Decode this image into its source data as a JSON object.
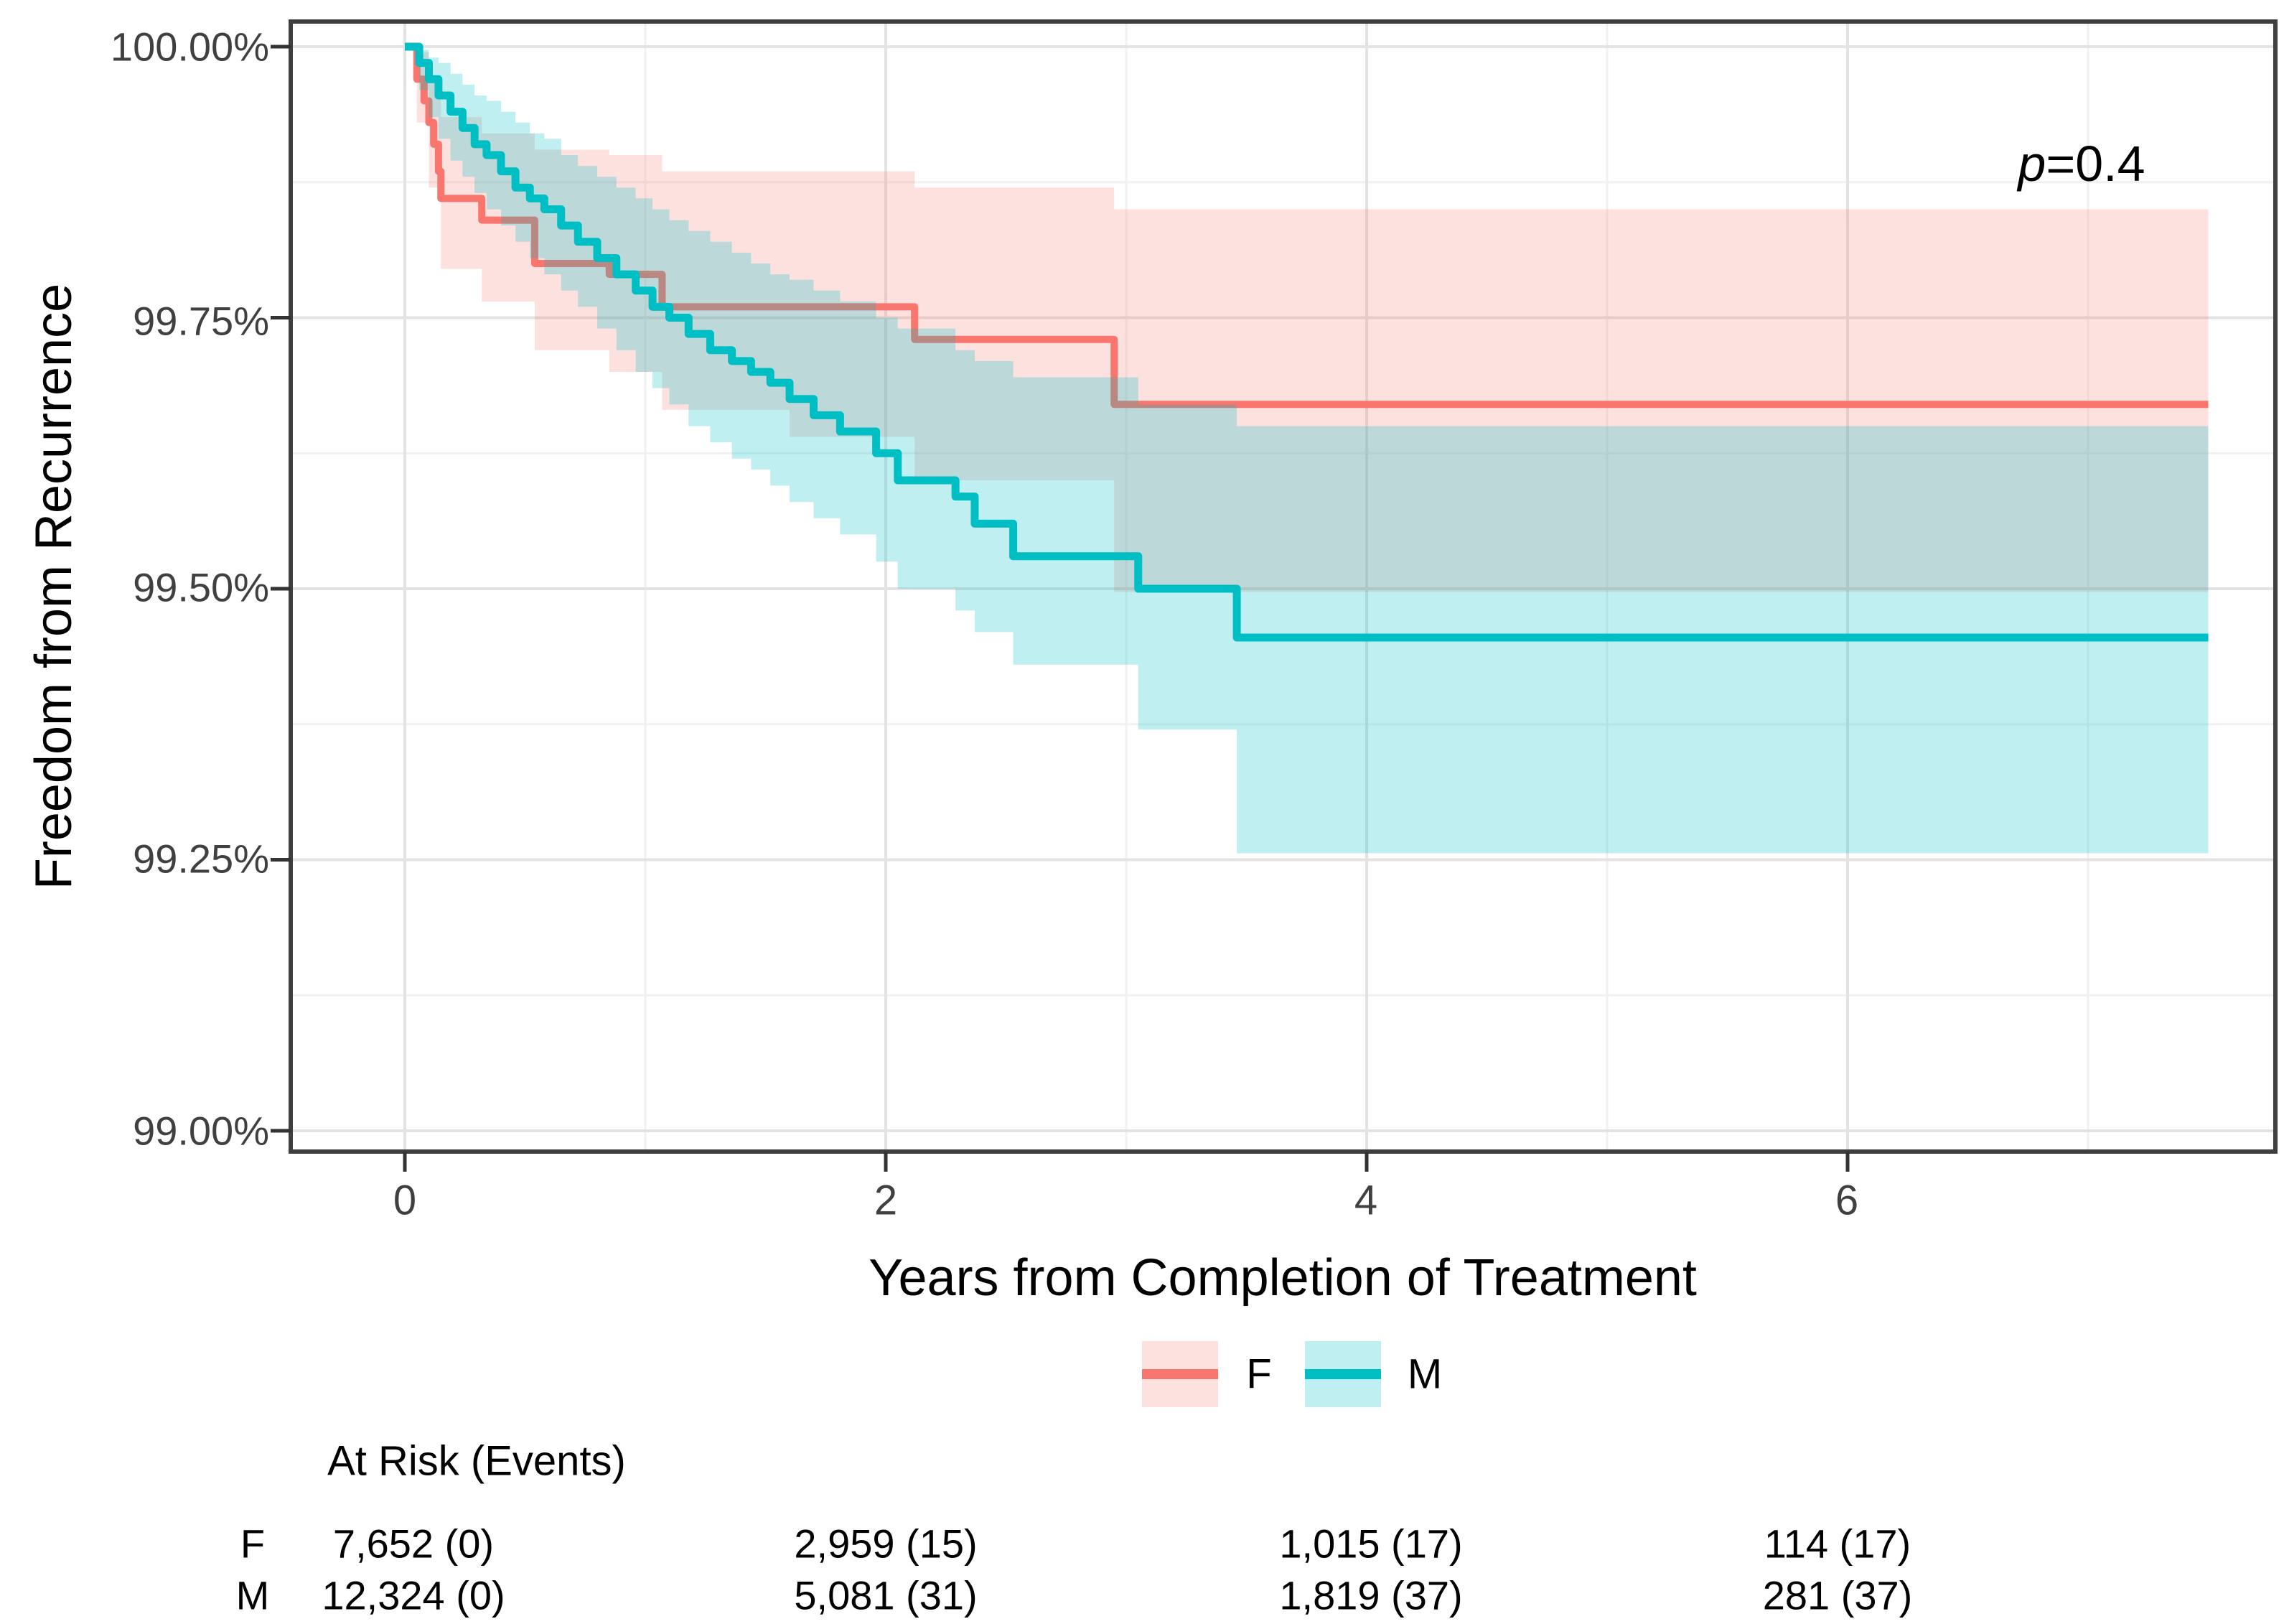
{
  "chart_data": {
    "type": "line",
    "subtype": "kaplan-meier-step-with-ci-ribbons",
    "title": "",
    "xlabel": "Years from Completion of Treatment",
    "ylabel": "Freedom from Recurrence",
    "xlim": [
      -0.475,
      7.78
    ],
    "ylim": [
      98.98,
      100.02
    ],
    "end_time": 7.5,
    "grid": "major+minor",
    "legend_position": "bottom",
    "annotation": {
      "p_symbol": "p",
      "p_value_text": "=0.4"
    },
    "x_ticks": [
      {
        "value": 0,
        "label": "0"
      },
      {
        "value": 2,
        "label": "2"
      },
      {
        "value": 4,
        "label": "4"
      },
      {
        "value": 6,
        "label": "6"
      }
    ],
    "x_minor_ticks": [
      1,
      3,
      5,
      7
    ],
    "y_ticks": [
      {
        "value": 100.0,
        "label": "100.00%"
      },
      {
        "value": 99.75,
        "label": "99.75%"
      },
      {
        "value": 99.5,
        "label": "99.50%"
      },
      {
        "value": 99.25,
        "label": "99.25%"
      },
      {
        "value": 99.0,
        "label": "99.00%"
      }
    ],
    "y_minor_ticks": [
      99.875,
      99.625,
      99.375,
      99.125
    ],
    "colors": {
      "f_line": "#F8766D",
      "m_line": "#00BFC4",
      "f_ribbon": "rgba(248,118,109,0.22)",
      "m_ribbon": "rgba(0,191,196,0.25)",
      "grid_major": "#E3E3E3",
      "grid_minor": "#F1F1F1",
      "panel_border": "#3F3F3F",
      "tick_mark": "#333333"
    },
    "series": [
      {
        "name": "F",
        "color": "#F8766D",
        "ribbon_color": "rgba(248,118,109,0.22)",
        "steps": [
          [
            0,
            100
          ],
          [
            0.05,
            99.97
          ],
          [
            0.08,
            99.95
          ],
          [
            0.1,
            99.93
          ],
          [
            0.12,
            99.91
          ],
          [
            0.14,
            99.885
          ],
          [
            0.15,
            99.86
          ],
          [
            0.32,
            99.84
          ],
          [
            0.54,
            99.8
          ],
          [
            0.85,
            99.79
          ],
          [
            1.07,
            99.76
          ],
          [
            2.12,
            99.73
          ],
          [
            2.95,
            99.67
          ]
        ],
        "upper": [
          [
            0,
            100
          ],
          [
            0.05,
            99.995
          ],
          [
            0.1,
            99.97
          ],
          [
            0.15,
            99.935
          ],
          [
            0.32,
            99.92
          ],
          [
            0.54,
            99.905
          ],
          [
            0.85,
            99.9
          ],
          [
            1.07,
            99.885
          ],
          [
            2.12,
            99.87
          ],
          [
            2.95,
            99.85
          ]
        ],
        "lower": [
          [
            0,
            100
          ],
          [
            0.05,
            99.93
          ],
          [
            0.1,
            99.87
          ],
          [
            0.15,
            99.795
          ],
          [
            0.32,
            99.765
          ],
          [
            0.54,
            99.72
          ],
          [
            0.85,
            99.7
          ],
          [
            1.07,
            99.665
          ],
          [
            1.6,
            99.64
          ],
          [
            2.12,
            99.6
          ],
          [
            2.95,
            99.497
          ]
        ]
      },
      {
        "name": "M",
        "color": "#00BFC4",
        "ribbon_color": "rgba(0,191,196,0.25)",
        "steps": [
          [
            0,
            100
          ],
          [
            0.06,
            99.985
          ],
          [
            0.1,
            99.97
          ],
          [
            0.14,
            99.955
          ],
          [
            0.19,
            99.94
          ],
          [
            0.24,
            99.925
          ],
          [
            0.29,
            99.91
          ],
          [
            0.34,
            99.9
          ],
          [
            0.4,
            99.885
          ],
          [
            0.46,
            99.87
          ],
          [
            0.52,
            99.86
          ],
          [
            0.58,
            99.85
          ],
          [
            0.65,
            99.835
          ],
          [
            0.72,
            99.82
          ],
          [
            0.8,
            99.805
          ],
          [
            0.88,
            99.79
          ],
          [
            0.96,
            99.775
          ],
          [
            1.03,
            99.76
          ],
          [
            1.1,
            99.75
          ],
          [
            1.18,
            99.735
          ],
          [
            1.27,
            99.72
          ],
          [
            1.36,
            99.71
          ],
          [
            1.44,
            99.7
          ],
          [
            1.52,
            99.69
          ],
          [
            1.6,
            99.675
          ],
          [
            1.7,
            99.66
          ],
          [
            1.81,
            99.645
          ],
          [
            1.96,
            99.625
          ],
          [
            2.05,
            99.6
          ],
          [
            2.29,
            99.585
          ],
          [
            2.37,
            99.56
          ],
          [
            2.53,
            99.53
          ],
          [
            3.05,
            99.5
          ],
          [
            3.46,
            99.455
          ]
        ],
        "upper": [
          [
            0,
            100
          ],
          [
            0.06,
            99.997
          ],
          [
            0.1,
            99.99
          ],
          [
            0.14,
            99.985
          ],
          [
            0.19,
            99.975
          ],
          [
            0.24,
            99.965
          ],
          [
            0.29,
            99.955
          ],
          [
            0.34,
            99.95
          ],
          [
            0.4,
            99.94
          ],
          [
            0.46,
            99.93
          ],
          [
            0.52,
            99.92
          ],
          [
            0.58,
            99.915
          ],
          [
            0.65,
            99.9
          ],
          [
            0.72,
            99.89
          ],
          [
            0.8,
            99.88
          ],
          [
            0.88,
            99.87
          ],
          [
            0.96,
            99.86
          ],
          [
            1.03,
            99.85
          ],
          [
            1.1,
            99.84
          ],
          [
            1.18,
            99.83
          ],
          [
            1.27,
            99.82
          ],
          [
            1.36,
            99.81
          ],
          [
            1.44,
            99.8
          ],
          [
            1.52,
            99.79
          ],
          [
            1.6,
            99.785
          ],
          [
            1.7,
            99.775
          ],
          [
            1.81,
            99.765
          ],
          [
            1.96,
            99.75
          ],
          [
            2.05,
            99.74
          ],
          [
            2.29,
            99.72
          ],
          [
            2.37,
            99.71
          ],
          [
            2.53,
            99.695
          ],
          [
            3.05,
            99.67
          ],
          [
            3.46,
            99.65
          ]
        ],
        "lower": [
          [
            0,
            100
          ],
          [
            0.06,
            99.96
          ],
          [
            0.1,
            99.935
          ],
          [
            0.14,
            99.915
          ],
          [
            0.19,
            99.895
          ],
          [
            0.24,
            99.88
          ],
          [
            0.29,
            99.865
          ],
          [
            0.34,
            99.85
          ],
          [
            0.4,
            99.835
          ],
          [
            0.46,
            99.82
          ],
          [
            0.52,
            99.805
          ],
          [
            0.58,
            99.79
          ],
          [
            0.65,
            99.775
          ],
          [
            0.72,
            99.76
          ],
          [
            0.8,
            99.74
          ],
          [
            0.88,
            99.72
          ],
          [
            0.96,
            99.7
          ],
          [
            1.03,
            99.685
          ],
          [
            1.1,
            99.67
          ],
          [
            1.18,
            99.65
          ],
          [
            1.27,
            99.635
          ],
          [
            1.36,
            99.62
          ],
          [
            1.44,
            99.61
          ],
          [
            1.52,
            99.595
          ],
          [
            1.6,
            99.58
          ],
          [
            1.7,
            99.565
          ],
          [
            1.81,
            99.55
          ],
          [
            1.96,
            99.525
          ],
          [
            2.05,
            99.5
          ],
          [
            2.29,
            99.48
          ],
          [
            2.37,
            99.46
          ],
          [
            2.53,
            99.43
          ],
          [
            3.05,
            99.37
          ],
          [
            3.46,
            99.256
          ]
        ]
      }
    ],
    "legend": [
      {
        "label": "F"
      },
      {
        "label": "M"
      }
    ],
    "at_risk": {
      "title": "At Risk (Events)",
      "times": [
        0,
        2,
        4,
        6
      ],
      "rows": [
        {
          "label": "F",
          "values": [
            "7,652 (0)",
            "2,959 (15)",
            "1,015 (17)",
            "114 (17)"
          ]
        },
        {
          "label": "M",
          "values": [
            "12,324 (0)",
            "5,081 (31)",
            "1,819 (37)",
            "281 (37)"
          ]
        }
      ]
    }
  }
}
